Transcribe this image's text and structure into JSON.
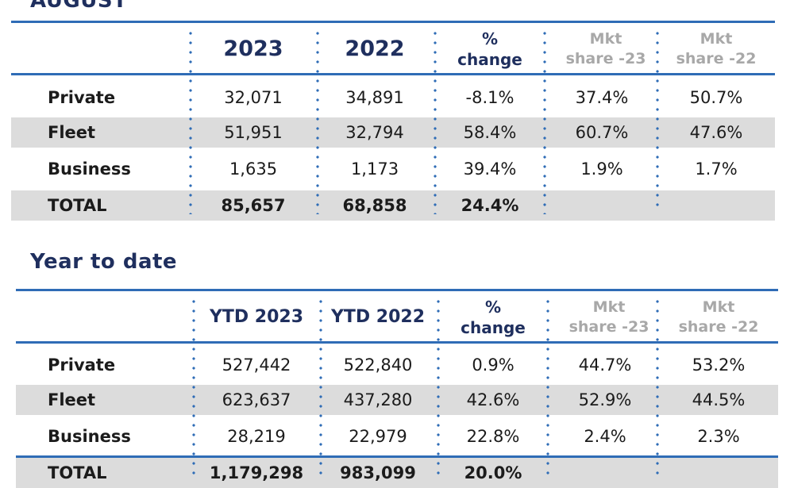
{
  "august": {
    "title": "AUGUST",
    "headers": {
      "col1": "2023",
      "col2": "2022",
      "change_line1": "%",
      "change_line2": "change",
      "mkt23_line1": "Mkt",
      "mkt23_line2": "share -23",
      "mkt22_line1": "Mkt",
      "mkt22_line2": "share -22"
    },
    "rows": [
      {
        "label": "Private",
        "v2023": "32,071",
        "v2022": "34,891",
        "change": "-8.1%",
        "mkt23": "37.4%",
        "mkt22": "50.7%"
      },
      {
        "label": "Fleet",
        "v2023": "51,951",
        "v2022": "32,794",
        "change": "58.4%",
        "mkt23": "60.7%",
        "mkt22": "47.6%"
      },
      {
        "label": "Business",
        "v2023": "1,635",
        "v2022": "1,173",
        "change": "39.4%",
        "mkt23": "1.9%",
        "mkt22": "1.7%"
      },
      {
        "label": "TOTAL",
        "v2023": "85,657",
        "v2022": "68,858",
        "change": "24.4%",
        "mkt23": "",
        "mkt22": ""
      }
    ]
  },
  "ytd": {
    "title": "Year to date",
    "headers": {
      "col1": "YTD 2023",
      "col2": "YTD 2022",
      "change_line1": "%",
      "change_line2": "change",
      "mkt23_line1": "Mkt",
      "mkt23_line2": "share -23",
      "mkt22_line1": "Mkt",
      "mkt22_line2": "share -22"
    },
    "rows": [
      {
        "label": "Private",
        "v2023": "527,442",
        "v2022": "522,840",
        "change": "0.9%",
        "mkt23": "44.7%",
        "mkt22": "53.2%"
      },
      {
        "label": "Fleet",
        "v2023": "623,637",
        "v2022": "437,280",
        "change": "42.6%",
        "mkt23": "52.9%",
        "mkt22": "44.5%"
      },
      {
        "label": "Business",
        "v2023": "28,219",
        "v2022": "22,979",
        "change": "22.8%",
        "mkt23": "2.4%",
        "mkt22": "2.3%"
      },
      {
        "label": "TOTAL",
        "v2023": "1,179,298",
        "v2022": "983,099",
        "change": "20.0%",
        "mkt23": "",
        "mkt22": ""
      }
    ]
  },
  "colors": {
    "rule": "#2f6cb6",
    "title": "#1f2f5e",
    "shade": "#dcdcdc",
    "muted_header": "#a8a8a8"
  }
}
